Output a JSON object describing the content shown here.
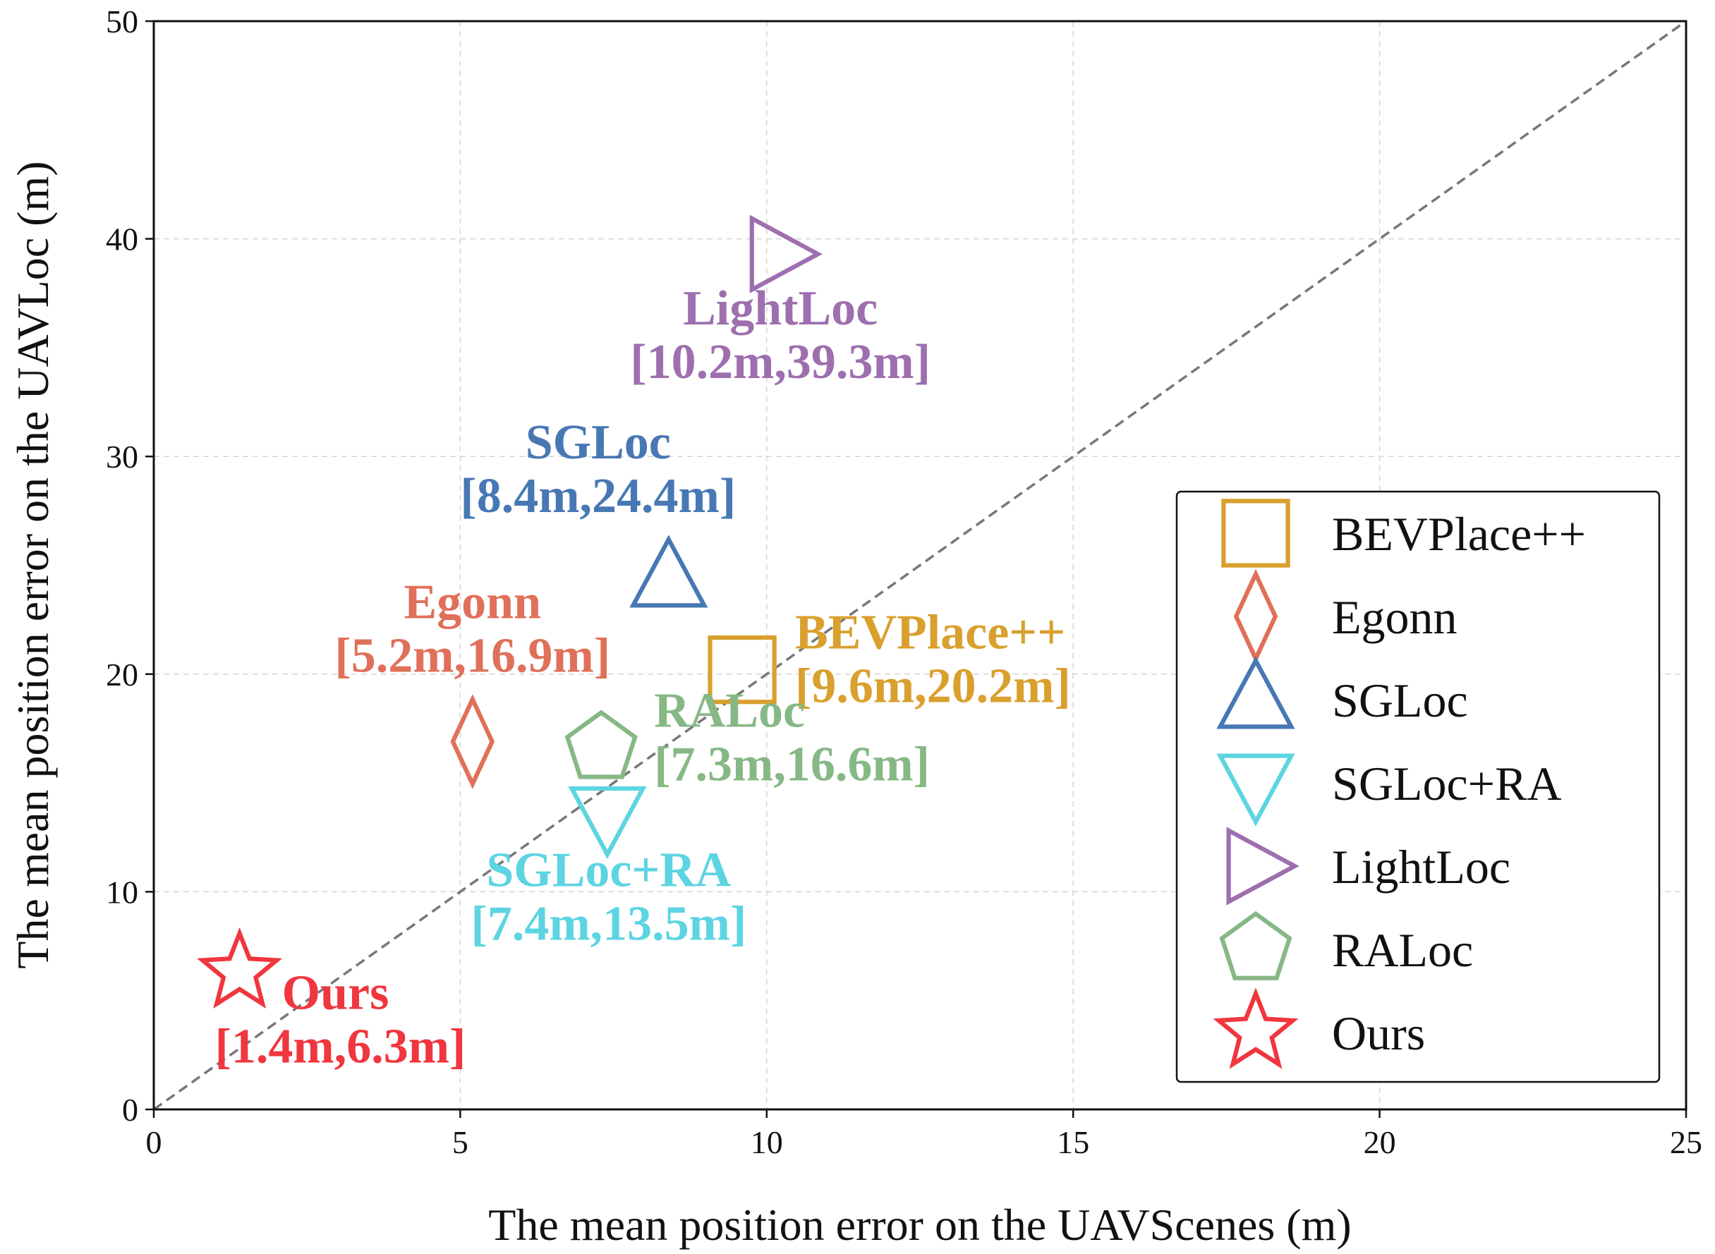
{
  "chart_data": {
    "type": "scatter",
    "title": "",
    "xlabel": "The mean position error on the UAVScenes (m)",
    "ylabel": "The mean position error on the UAVLoc (m)",
    "xlim": [
      0,
      25
    ],
    "ylim": [
      0,
      50
    ],
    "xticks": [
      0,
      5,
      10,
      15,
      20,
      25
    ],
    "yticks": [
      0,
      10,
      20,
      30,
      40,
      50
    ],
    "grid": true,
    "diagonal_line": "y = 2x (dashed grey reference from origin to top-right corner)",
    "legend_position": "right",
    "series": [
      {
        "name": "BEVPlace++",
        "x": 9.6,
        "y": 20.2,
        "marker": "square",
        "color": "#D9A02E",
        "label_lines": [
          "BEVPlace++",
          "[9.6m,20.2m]"
        ],
        "label_anchor": "right"
      },
      {
        "name": "Egonn",
        "x": 5.2,
        "y": 16.9,
        "marker": "diamond",
        "color": "#E0705A",
        "label_lines": [
          "Egonn",
          "[5.2m,16.9m]"
        ],
        "label_anchor": "above"
      },
      {
        "name": "SGLoc",
        "x": 8.4,
        "y": 24.4,
        "marker": "triangle-up",
        "color": "#4878B4",
        "label_lines": [
          "SGLoc",
          "[8.4m,24.4m]"
        ],
        "label_anchor": "above-left"
      },
      {
        "name": "SGLoc+RA",
        "x": 7.4,
        "y": 13.5,
        "marker": "triangle-down",
        "color": "#5DD4E2",
        "label_lines": [
          "SGLoc+RA",
          "[7.4m,13.5m]"
        ],
        "label_anchor": "below"
      },
      {
        "name": "LightLoc",
        "x": 10.2,
        "y": 39.3,
        "marker": "triangle-right",
        "color": "#9E6FAF",
        "label_lines": [
          "LightLoc",
          "[10.2m,39.3m]"
        ],
        "label_anchor": "below"
      },
      {
        "name": "RALoc",
        "x": 7.3,
        "y": 16.6,
        "marker": "pentagon",
        "color": "#86B886",
        "label_lines": [
          "RALoc",
          "[7.3m,16.6m]"
        ],
        "label_anchor": "right"
      },
      {
        "name": "Ours",
        "x": 1.4,
        "y": 6.3,
        "marker": "star",
        "color": "#F0363E",
        "label_lines": [
          "Ours",
          "[1.4m,6.3m]"
        ],
        "label_anchor": "below-right"
      }
    ]
  }
}
